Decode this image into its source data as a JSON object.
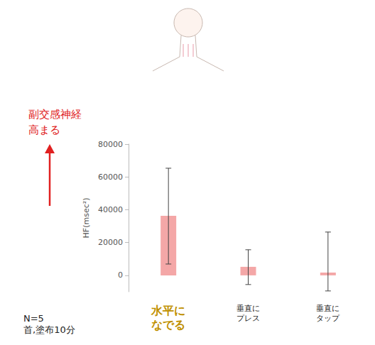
{
  "chart_data": {
    "type": "bar",
    "categories": [
      "水平に\nなでる",
      "垂直に\nプレス",
      "垂直に\nタップ"
    ],
    "values": [
      36300,
      5200,
      1700
    ],
    "error_lower": [
      6900,
      -5600,
      -9500
    ],
    "error_upper": [
      65300,
      15600,
      26400
    ],
    "color": "#f4a7a7",
    "y_label": "HF(msec²)",
    "ylim": [
      -10000,
      80000
    ],
    "yticks": [
      0,
      20000,
      40000,
      60000,
      80000
    ],
    "grid": false,
    "annotations": [
      "副交感神経\n高まる",
      "N=5\n首,塗布10分"
    ]
  }
}
